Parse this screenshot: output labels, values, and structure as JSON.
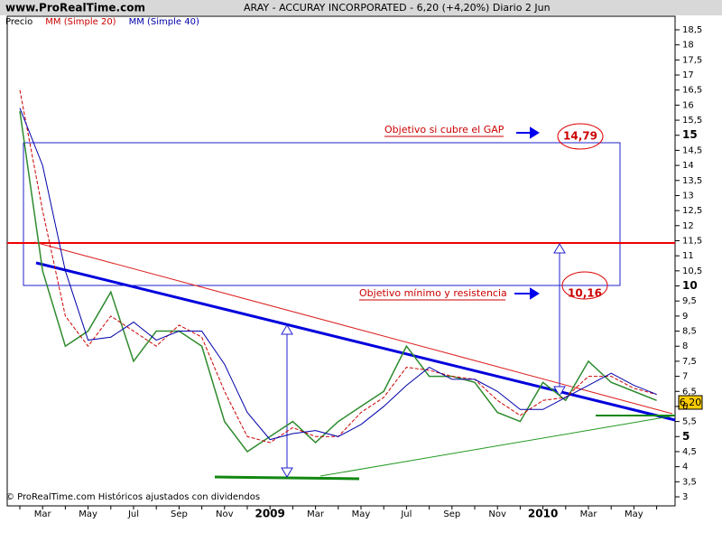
{
  "header": {
    "site": "www.ProRealTime.com",
    "title": "ARAY - ACCURAY INCORPORATED -    6,20 (+4,20%)   Diario  2 Jun"
  },
  "chart_data": {
    "type": "line",
    "categories": [
      null,
      "Mar",
      null,
      "May",
      null,
      "Jul",
      null,
      "Sep",
      null,
      "Nov",
      null,
      "2009",
      null,
      "Mar",
      null,
      "May",
      null,
      "Jul",
      null,
      "Sep",
      null,
      "Nov",
      null,
      "2010",
      null,
      "Mar",
      null,
      "May",
      null
    ],
    "series": [
      {
        "name": "Precio",
        "color": "#2e8b2e",
        "values": [
          15.8,
          10.5,
          8,
          8.5,
          9.8,
          7.5,
          8.5,
          8.5,
          8,
          5.5,
          4.5,
          5,
          5.5,
          4.8,
          5.5,
          6,
          6.5,
          8,
          7,
          7,
          6.8,
          5.8,
          5.5,
          6.8,
          6.2,
          7.5,
          6.8,
          6.5,
          6.2
        ]
      },
      {
        "name": "MM (Simple 20)",
        "color": "#cc0000",
        "values": [
          16.5,
          12.5,
          9,
          8,
          9,
          8.5,
          8,
          8.7,
          8.3,
          6.5,
          5,
          4.8,
          5.3,
          5,
          5,
          5.8,
          6.3,
          7.3,
          7.2,
          7,
          6.9,
          6.2,
          5.7,
          6.2,
          6.3,
          7,
          7,
          6.6,
          6.4
        ]
      },
      {
        "name": "MM (Simple 40)",
        "color": "#0000aa",
        "values": [
          15.9,
          14,
          10.5,
          8.2,
          8.3,
          8.8,
          8.2,
          8.5,
          8.5,
          7.4,
          5.8,
          4.9,
          5.1,
          5.2,
          5,
          5.4,
          6,
          6.7,
          7.3,
          6.9,
          6.9,
          6.5,
          5.9,
          5.9,
          6.3,
          6.7,
          7.1,
          6.7,
          6.4
        ]
      }
    ],
    "ylim": [
      3,
      18.5
    ],
    "yticks": [
      3,
      {
        "value": 3.5,
        "label": "3,5"
      },
      4,
      {
        "value": 4.5,
        "label": "4,5"
      },
      5,
      {
        "value": 5.5,
        "label": "5,5"
      },
      6,
      {
        "value": 6.5,
        "label": "6,5"
      },
      7,
      {
        "value": 7.5,
        "label": "7,5"
      },
      8,
      {
        "value": 8.5,
        "label": "8,5"
      },
      9,
      {
        "value": 9.5,
        "label": "9,5"
      },
      10,
      {
        "value": 10.5,
        "label": "10,5"
      },
      11,
      {
        "value": 11.5,
        "label": "11,5"
      },
      12,
      {
        "value": 12.5,
        "label": "12,5"
      },
      13,
      {
        "value": 13.5,
        "label": "13,5"
      },
      14,
      {
        "value": 14.5,
        "label": "14,5"
      },
      15,
      {
        "value": 15.5,
        "label": "15,5"
      },
      16,
      {
        "value": 16.5,
        "label": "16,5"
      },
      17,
      {
        "value": 17.5,
        "label": "17,5"
      },
      18,
      {
        "value": 18.5,
        "label": "18,5"
      }
    ],
    "annotations": {
      "gap_target": "Objetivo si cubre el GAP",
      "gap_price": "14,79",
      "min_target": "Objetivo mínimo y resistencia",
      "min_price": "10,16",
      "last_price": "6,20"
    },
    "footer": "© ProRealTime.com Históricos ajustados con dividendos"
  }
}
